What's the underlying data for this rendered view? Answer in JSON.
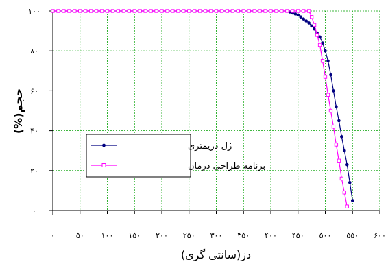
{
  "chart_data": {
    "type": "line",
    "xlabel": "دز(سانتی گری)",
    "ylabel": "حجم(%)",
    "xlim": [
      0,
      600
    ],
    "ylim": [
      0,
      100
    ],
    "x_ticks": [
      0,
      50,
      100,
      150,
      200,
      250,
      300,
      350,
      400,
      450,
      500,
      550,
      600
    ],
    "y_ticks": [
      0,
      20,
      40,
      60,
      80,
      100
    ],
    "x_tick_labels": [
      "۰",
      "۵۰",
      "۱۰۰",
      "۱۵۰",
      "۲۰۰",
      "۲۵۰",
      "۳۰۰",
      "۳۵۰",
      "۴۰۰",
      "۴۵۰",
      "۵۰۰",
      "۵۵۰",
      "۶۰۰"
    ],
    "y_tick_labels": [
      "۰",
      "۲۰",
      "۴۰",
      "۶۰",
      "۸۰",
      "۱۰۰"
    ],
    "grid": true,
    "legend_position": "lower-left inside plot",
    "series": [
      {
        "name": "ژل دزیمتری",
        "color": "#000080",
        "marker": "filled-circle",
        "points": [
          [
            0,
            100
          ],
          [
            10,
            100
          ],
          [
            20,
            100
          ],
          [
            30,
            100
          ],
          [
            40,
            100
          ],
          [
            50,
            100
          ],
          [
            60,
            100
          ],
          [
            70,
            100
          ],
          [
            80,
            100
          ],
          [
            90,
            100
          ],
          [
            100,
            100
          ],
          [
            110,
            100
          ],
          [
            120,
            100
          ],
          [
            130,
            100
          ],
          [
            140,
            100
          ],
          [
            150,
            100
          ],
          [
            160,
            100
          ],
          [
            170,
            100
          ],
          [
            180,
            100
          ],
          [
            190,
            100
          ],
          [
            200,
            100
          ],
          [
            210,
            100
          ],
          [
            220,
            100
          ],
          [
            230,
            100
          ],
          [
            240,
            100
          ],
          [
            250,
            100
          ],
          [
            260,
            100
          ],
          [
            270,
            100
          ],
          [
            280,
            100
          ],
          [
            290,
            100
          ],
          [
            300,
            100
          ],
          [
            310,
            100
          ],
          [
            320,
            100
          ],
          [
            330,
            100
          ],
          [
            340,
            100
          ],
          [
            350,
            100
          ],
          [
            360,
            100
          ],
          [
            370,
            100
          ],
          [
            380,
            100
          ],
          [
            390,
            100
          ],
          [
            400,
            100
          ],
          [
            410,
            100
          ],
          [
            420,
            100
          ],
          [
            430,
            100
          ],
          [
            435,
            99.5
          ],
          [
            440,
            99
          ],
          [
            445,
            98.5
          ],
          [
            450,
            98
          ],
          [
            455,
            97
          ],
          [
            460,
            96
          ],
          [
            465,
            95
          ],
          [
            470,
            94
          ],
          [
            475,
            92.5
          ],
          [
            480,
            91
          ],
          [
            485,
            89
          ],
          [
            490,
            87
          ],
          [
            495,
            84
          ],
          [
            500,
            80
          ],
          [
            505,
            75
          ],
          [
            510,
            68
          ],
          [
            515,
            60
          ],
          [
            520,
            52
          ],
          [
            525,
            45
          ],
          [
            530,
            37
          ],
          [
            535,
            30
          ],
          [
            540,
            23
          ],
          [
            545,
            14
          ],
          [
            550,
            5
          ]
        ]
      },
      {
        "name": "برنامه طراحی درمان",
        "color": "#FF00FF",
        "marker": "open-square",
        "points": [
          [
            0,
            100
          ],
          [
            10,
            100
          ],
          [
            20,
            100
          ],
          [
            30,
            100
          ],
          [
            40,
            100
          ],
          [
            50,
            100
          ],
          [
            60,
            100
          ],
          [
            70,
            100
          ],
          [
            80,
            100
          ],
          [
            90,
            100
          ],
          [
            100,
            100
          ],
          [
            110,
            100
          ],
          [
            120,
            100
          ],
          [
            130,
            100
          ],
          [
            140,
            100
          ],
          [
            150,
            100
          ],
          [
            160,
            100
          ],
          [
            170,
            100
          ],
          [
            180,
            100
          ],
          [
            190,
            100
          ],
          [
            200,
            100
          ],
          [
            210,
            100
          ],
          [
            220,
            100
          ],
          [
            230,
            100
          ],
          [
            240,
            100
          ],
          [
            250,
            100
          ],
          [
            260,
            100
          ],
          [
            270,
            100
          ],
          [
            280,
            100
          ],
          [
            290,
            100
          ],
          [
            300,
            100
          ],
          [
            310,
            100
          ],
          [
            320,
            100
          ],
          [
            330,
            100
          ],
          [
            340,
            100
          ],
          [
            350,
            100
          ],
          [
            360,
            100
          ],
          [
            370,
            100
          ],
          [
            380,
            100
          ],
          [
            390,
            100
          ],
          [
            400,
            100
          ],
          [
            410,
            100
          ],
          [
            420,
            100
          ],
          [
            430,
            100
          ],
          [
            440,
            100
          ],
          [
            450,
            100
          ],
          [
            460,
            100
          ],
          [
            470,
            100
          ],
          [
            475,
            97
          ],
          [
            480,
            93
          ],
          [
            485,
            88
          ],
          [
            490,
            83
          ],
          [
            495,
            75
          ],
          [
            500,
            67
          ],
          [
            505,
            58
          ],
          [
            510,
            50
          ],
          [
            515,
            42
          ],
          [
            520,
            33
          ],
          [
            525,
            25
          ],
          [
            530,
            16
          ],
          [
            535,
            9
          ],
          [
            540,
            2
          ]
        ]
      }
    ]
  }
}
